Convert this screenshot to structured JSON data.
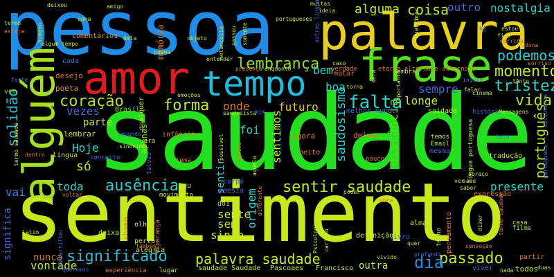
{
  "words": [
    {
      "text": "saudade",
      "color": "#22e01e"
    },
    {
      "text": "sentimento",
      "color": "#c8e81a"
    },
    {
      "text": "pessoa",
      "color": "#1f8de8"
    },
    {
      "text": "palavra",
      "color": "#e8cf1a"
    },
    {
      "text": "amor",
      "color": "#e11b1b"
    },
    {
      "text": "frase",
      "color": "#56e01a"
    },
    {
      "text": "tempo",
      "color": "#1dbfe0"
    },
    {
      "text": "alguém",
      "color": "#a6e01a"
    },
    {
      "text": "lembrança",
      "color": "#8ee01a"
    },
    {
      "text": "momento",
      "color": "#c8e81a"
    },
    {
      "text": "podemos",
      "color": "#22d6d0"
    },
    {
      "text": "tristeza",
      "color": "#22d6d0"
    },
    {
      "text": "coração",
      "color": "#b6e01a"
    },
    {
      "text": "forma",
      "color": "#c8e81a"
    },
    {
      "text": "falta",
      "color": "#22d6d0"
    },
    {
      "text": "vida",
      "color": "#b6e01a"
    },
    {
      "text": "solidão",
      "color": "#22c0d6"
    },
    {
      "text": "português",
      "color": "#b6e01a"
    },
    {
      "text": "ausência",
      "color": "#22d6d0"
    },
    {
      "text": "sentir saudade",
      "color": "#c8e81a"
    },
    {
      "text": "presente",
      "color": "#22d6d0"
    },
    {
      "text": "significado",
      "color": "#22c0d6"
    },
    {
      "text": "palavra saudade",
      "color": "#c8e81a"
    },
    {
      "text": "passado",
      "color": "#c8e81a"
    },
    {
      "text": "dia",
      "color": "#1f8de8"
    },
    {
      "text": "sempre",
      "color": "#3a6ce0"
    },
    {
      "text": "longe",
      "color": "#c8e81a"
    },
    {
      "text": "futuro",
      "color": "#e8cf1a"
    },
    {
      "text": "sentimos",
      "color": "#c8e81a"
    },
    {
      "text": "saudosismo",
      "color": "#22d6d0"
    },
    {
      "text": "distância",
      "color": "#56e01a"
    },
    {
      "text": "coisa",
      "color": "#c8e81a"
    },
    {
      "text": "alguma",
      "color": "#c8e81a"
    },
    {
      "text": "outro",
      "color": "#3a6ce0"
    },
    {
      "text": "nostalgia",
      "color": "#22d6d0"
    },
    {
      "text": "bem",
      "color": "#22d6d0"
    },
    {
      "text": "boa",
      "color": "#22d6d0"
    },
    {
      "text": "vezes",
      "color": "#3a6ce0"
    },
    {
      "text": "parte",
      "color": "#c8e81a"
    },
    {
      "text": "Hoje",
      "color": "#22d6d0"
    },
    {
      "text": "só",
      "color": "#c8e81a"
    },
    {
      "text": "toda",
      "color": "#22d6d0"
    },
    {
      "text": "vai",
      "color": "#1f8de8"
    },
    {
      "text": "sente",
      "color": "#c8e81a"
    },
    {
      "text": "sem",
      "color": "#c8e81a"
    },
    {
      "text": "sinto",
      "color": "#c8e81a"
    },
    {
      "text": "origem",
      "color": "#22d6d0"
    },
    {
      "text": "onde",
      "color": "#e0781a"
    },
    {
      "text": "foi",
      "color": "#22d6d0"
    },
    {
      "text": "nunca",
      "color": "#e0781a"
    },
    {
      "text": "vontade",
      "color": "#c8e81a"
    },
    {
      "text": "outra",
      "color": "#c8e81a"
    },
    {
      "text": "significa",
      "color": "#3a6ce0"
    },
    {
      "text": "sentir",
      "color": "#22d6d0"
    },
    {
      "text": "memória",
      "color": "#e0781a"
    },
    {
      "text": "apenas",
      "color": "#8ee01a"
    },
    {
      "text": "comentários",
      "color": "#e0a01a"
    },
    {
      "text": "desejo",
      "color": "#e0781a"
    },
    {
      "text": "poeta",
      "color": "#e0a01a"
    },
    {
      "text": "cada",
      "color": "#3a6ce0"
    },
    {
      "text": "vem",
      "color": "#8ee01a"
    },
    {
      "text": "lembrar",
      "color": "#c8e81a"
    },
    {
      "text": "infância",
      "color": "#e0781a"
    },
    {
      "text": "Brasil",
      "color": "#8ee01a"
    },
    {
      "text": "qualquer",
      "color": "#c8e81a"
    },
    {
      "text": "conceito",
      "color": "#3a6ce0"
    },
    {
      "text": "corpo",
      "color": "#3a6ce0"
    },
    {
      "text": "poesia",
      "color": "#3a6ce0"
    },
    {
      "text": "Deu",
      "color": "#c8e81a"
    },
    {
      "text": "movimento",
      "color": "#c8e81a"
    },
    {
      "text": "dói",
      "color": "#c8e81a"
    },
    {
      "text": "olhar",
      "color": "#c8e81a"
    },
    {
      "text": "deixa",
      "color": "#c8e81a"
    },
    {
      "text": "perto",
      "color": "#c8e81a"
    },
    {
      "text": "esperança",
      "color": "#e0781a"
    },
    {
      "text": "alegria",
      "color": "#c8e81a"
    },
    {
      "text": "experiência",
      "color": "#e0781a"
    },
    {
      "text": "lugar",
      "color": "#c8e81a"
    },
    {
      "text": "saudade Saudade",
      "color": "#c8e81a"
    },
    {
      "text": "Pascoaes",
      "color": "#c8e81a"
    },
    {
      "text": "Francisco",
      "color": "#c8e81a"
    },
    {
      "text": "definição",
      "color": "#c8e81a"
    },
    {
      "text": "alma",
      "color": "#c8e81a"
    },
    {
      "text": "livro",
      "color": "#3a6ce0"
    },
    {
      "text": "pensamento",
      "color": "#e0781a"
    },
    {
      "text": "tenho",
      "color": "#c8e81a"
    },
    {
      "text": "todos",
      "color": "#c8e81a"
    },
    {
      "text": "partir",
      "color": "#e0781a"
    },
    {
      "text": "expressão",
      "color": "#e0781a"
    },
    {
      "text": "tradução",
      "color": "#c8e81a"
    },
    {
      "text": "cinema",
      "color": "#c8e81a"
    },
    {
      "text": "história",
      "color": "#3a6ce0"
    },
    {
      "text": "soidade",
      "color": "#c8e81a"
    },
    {
      "text": "mesma",
      "color": "#3a6ce0"
    },
    {
      "text": "temos",
      "color": "#c8e81a"
    },
    {
      "text": "Email",
      "color": "#c8e81a"
    },
    {
      "text": "agora",
      "color": "#e0781a"
    },
    {
      "text": "peito",
      "color": "#e0781a"
    },
    {
      "text": "deixar",
      "color": "#e0781a"
    },
    {
      "text": "melhor mundo",
      "color": "#3a6ce0"
    },
    {
      "text": "língua portuguesa",
      "color": "#c8e81a"
    },
    {
      "text": "língua",
      "color": "#c8e81a"
    },
    {
      "text": "talvez",
      "color": "#3a6ce0"
    },
    {
      "text": "era",
      "color": "#c8e81a"
    },
    {
      "text": "tema",
      "color": "#e0781a"
    },
    {
      "text": "pouco",
      "color": "#e0781a"
    },
    {
      "text": "matar",
      "color": "#e0781a"
    },
    {
      "text": "verdade",
      "color": "#e0781a"
    },
    {
      "text": "eterna alternate alternate",
      "color": "#e0781a"
    },
    {
      "text": "lembra",
      "color": "#c8e81a"
    },
    {
      "text": "ideia",
      "color": "#c8e81a"
    },
    {
      "text": "muitas",
      "color": "#c8e81a"
    },
    {
      "text": "portugueses",
      "color": "#c8e81a"
    },
    {
      "text": "melancolia",
      "color": "#c8e81a"
    },
    {
      "text": "objeto",
      "color": "#c8e81a"
    },
    {
      "text": "poema",
      "color": "#c8e81a"
    },
    {
      "text": "dela",
      "color": "#c8e81a"
    },
    {
      "text": "amigo",
      "color": "#c8e81a"
    },
    {
      "text": "unha",
      "color": "#c8e81a"
    },
    {
      "text": "deixou",
      "color": "#c8e81a"
    },
    {
      "text": "termo",
      "color": "#c8e81a"
    },
    {
      "text": "esteja",
      "color": "#e0781a"
    },
    {
      "text": "entender",
      "color": "#c8e81a"
    },
    {
      "text": "presença",
      "color": "#e0781a"
    },
    {
      "text": "enquanto",
      "color": "#c8e81a"
    },
    {
      "text": "passou",
      "color": "#c8e81a"
    },
    {
      "text": "somente",
      "color": "#c8e81a"
    },
    {
      "text": "dentro",
      "color": "#e0781a"
    },
    {
      "text": "Compartilhar",
      "color": "#3a6ce0"
    },
    {
      "text": "queremos",
      "color": "#3a6ce0"
    },
    {
      "text": "voltar",
      "color": "#e0781a"
    },
    {
      "text": "latim",
      "color": "#c8e81a"
    },
    {
      "text": "Psicologia",
      "color": "#c8e81a"
    },
    {
      "text": "carinho",
      "color": "#c8e81a"
    },
    {
      "text": "vivido",
      "color": "#c8e81a"
    },
    {
      "text": "profundo",
      "color": "#3a6ce0"
    },
    {
      "text": "quer",
      "color": "#c8e81a"
    },
    {
      "text": "viver",
      "color": "#3a6ce0"
    },
    {
      "text": "nada",
      "color": "#c8e81a"
    },
    {
      "text": "casa",
      "color": "#c8e81a"
    },
    {
      "text": "filme",
      "color": "#c8e81a"
    },
    {
      "text": "obra",
      "color": "#e0781a"
    },
    {
      "text": "saber",
      "color": "#c8e81a"
    },
    {
      "text": "poder",
      "color": "#c8e81a"
    },
    {
      "text": "ver",
      "color": "#c8e81a"
    },
    {
      "text": "sabe",
      "color": "#c8e81a"
    },
    {
      "text": "abraço",
      "color": "#c8e81a"
    },
    {
      "text": "quanto",
      "color": "#c8e81a"
    },
    {
      "text": "morriña",
      "color": "#e0781a"
    },
    {
      "text": "estou",
      "color": "#c8e81a"
    },
    {
      "text": "fica",
      "color": "#c8e81a"
    },
    {
      "text": "tanto",
      "color": "#c8e81a"
    },
    {
      "text": "sorriso",
      "color": "#e0781a"
    },
    {
      "text": "dicionário",
      "color": "#3a6ce0"
    },
    {
      "text": "Mensagens",
      "color": "#c8e81a"
    },
    {
      "text": "leia",
      "color": "#3a6ce0"
    },
    {
      "text": "importante",
      "color": "#c8e81a"
    },
    {
      "text": "será",
      "color": "#c8e81a"
    },
    {
      "text": "torna",
      "color": "#c8e81a"
    },
    {
      "text": "forte",
      "color": "#3a6ce0"
    },
    {
      "text": "emoções",
      "color": "#c8e81a"
    },
    {
      "text": "aquela",
      "color": "#c8e81a"
    },
    {
      "text": "aquilo",
      "color": "#e0781a"
    },
    {
      "text": "possível",
      "color": "#c8e81a"
    },
    {
      "text": "diferente",
      "color": "#e0781a"
    },
    {
      "text": "saudosista",
      "color": "#c8e81a"
    },
    {
      "text": "vivemos",
      "color": "#e0781a"
    },
    {
      "text": "Segundo",
      "color": "#3a6ce0"
    },
    {
      "text": "termo saudade",
      "color": "#c8e81a"
    },
    {
      "text": "caso",
      "color": "#c8e81a"
    },
    {
      "text": "mim",
      "color": "#3a6ce0"
    },
    {
      "text": "falar",
      "color": "#c8e81a"
    },
    {
      "text": "portuguesa",
      "color": "#3a6ce0"
    },
    {
      "text": "Também",
      "color": "#e0781a"
    },
    {
      "text": "tenho saudade",
      "color": "#e0781a"
    },
    {
      "text": "dizer",
      "color": "#c8e81a"
    },
    {
      "text": "sensação",
      "color": "#e0781a"
    },
    {
      "text": "duas",
      "color": "#c8e81a"
    },
    {
      "text": "outras línguas",
      "color": "#3a6ce0"
    },
    {
      "text": "humano",
      "color": "#c8e81a"
    },
    {
      "text": "algum tempo",
      "color": "#c8e81a"
    },
    {
      "text": "ficar",
      "color": "#c8e81a"
    },
    {
      "text": "há",
      "color": "#3a6ce0"
    },
    {
      "text": "inicio",
      "color": "#3a6ce0"
    },
    {
      "text": "dona",
      "color": "#e0781a"
    },
    {
      "text": "sinônimo",
      "color": "#c8e81a"
    }
  ]
}
